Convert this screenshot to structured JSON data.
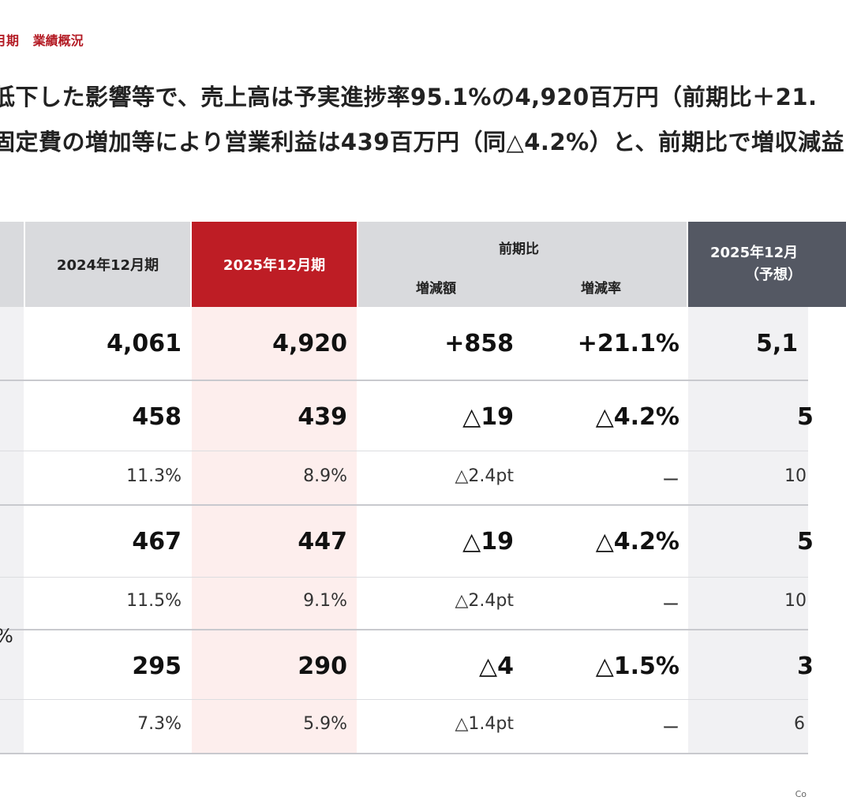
{
  "header": {
    "period": "月期",
    "section": "業績概況"
  },
  "lead": {
    "line1": "低下した影響等で、売上高は予実進捗率95.1%の4,920百万円（前期比＋21.",
    "line2": "固定費の増加等により営業利益は439百万円（同△4.2%）と、前期比で増収減益"
  },
  "table": {
    "headers": {
      "prev": "2024年12月期",
      "curr": "2025年12月期",
      "compare": "前期比",
      "diff": "増減額",
      "rate": "増減率",
      "forecast_line1": "2025年12月",
      "forecast_line2": "（予想）"
    },
    "rows": [
      {
        "prev": "4,061",
        "curr": "4,920",
        "diff": "+858",
        "rate": "+21.1%",
        "forecast": "5,1"
      },
      {
        "prev": "458",
        "curr": "439",
        "diff": "△19",
        "rate": "△4.2%",
        "forecast": "5"
      },
      {
        "prev": "11.3%",
        "curr": "8.9%",
        "diff": "△2.4pt",
        "rate": "ー",
        "forecast": "10"
      },
      {
        "prev": "467",
        "curr": "447",
        "diff": "△19",
        "rate": "△4.2%",
        "forecast": "5"
      },
      {
        "prev": "11.5%",
        "curr": "9.1%",
        "diff": "△2.4pt",
        "rate": "ー",
        "forecast": "10"
      },
      {
        "prev": "295",
        "curr": "290",
        "diff": "△4",
        "rate": "△1.5%",
        "forecast": "3"
      },
      {
        "prev": "7.3%",
        "curr": "5.9%",
        "diff": "△1.4pt",
        "rate": "ー",
        "forecast": "6"
      }
    ],
    "left_fragment": "%"
  },
  "footer": "Co"
}
